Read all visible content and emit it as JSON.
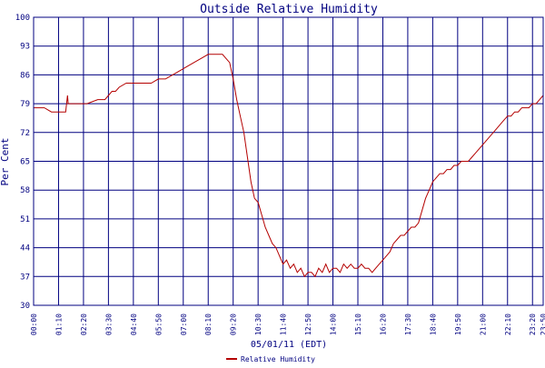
{
  "chart_data": {
    "type": "line",
    "title": "Outside Relative Humidity",
    "xlabel": "05/01/11 (EDT)",
    "ylabel": "Per Cent",
    "ylim": [
      30,
      100
    ],
    "yticks": [
      30,
      37,
      44,
      51,
      58,
      65,
      72,
      79,
      86,
      93,
      100
    ],
    "xlim": [
      "00:00",
      "23:50"
    ],
    "xticks": [
      "00:00",
      "01:10",
      "02:20",
      "03:30",
      "04:40",
      "05:50",
      "07:00",
      "08:10",
      "09:20",
      "10:30",
      "11:40",
      "12:50",
      "14:00",
      "15:10",
      "16:20",
      "17:30",
      "18:40",
      "19:50",
      "21:00",
      "22:10",
      "23:20",
      "23:50"
    ],
    "grid": true,
    "legend_position": "bottom-center",
    "colors": {
      "series": "#b40000",
      "grid": "#000080",
      "title": "#000080"
    },
    "series": [
      {
        "name": "Relative Humidity",
        "points": [
          [
            "00:00",
            78
          ],
          [
            "00:10",
            78
          ],
          [
            "00:30",
            78
          ],
          [
            "00:50",
            77
          ],
          [
            "01:00",
            77
          ],
          [
            "01:20",
            77
          ],
          [
            "01:30",
            77
          ],
          [
            "01:35",
            81
          ],
          [
            "01:37",
            79
          ],
          [
            "02:00",
            79
          ],
          [
            "02:30",
            79
          ],
          [
            "03:00",
            80
          ],
          [
            "03:20",
            80
          ],
          [
            "03:40",
            82
          ],
          [
            "03:50",
            82
          ],
          [
            "04:00",
            83
          ],
          [
            "04:20",
            84
          ],
          [
            "04:40",
            84
          ],
          [
            "05:10",
            84
          ],
          [
            "05:30",
            84
          ],
          [
            "05:50",
            85
          ],
          [
            "06:10",
            85
          ],
          [
            "06:30",
            86
          ],
          [
            "06:50",
            87
          ],
          [
            "07:10",
            88
          ],
          [
            "07:30",
            89
          ],
          [
            "07:50",
            90
          ],
          [
            "08:10",
            91
          ],
          [
            "08:30",
            91
          ],
          [
            "08:50",
            91
          ],
          [
            "09:00",
            90
          ],
          [
            "09:10",
            89
          ],
          [
            "09:20",
            85
          ],
          [
            "09:30",
            80
          ],
          [
            "09:40",
            76
          ],
          [
            "09:50",
            72
          ],
          [
            "10:00",
            66
          ],
          [
            "10:10",
            60
          ],
          [
            "10:20",
            56
          ],
          [
            "10:30",
            55
          ],
          [
            "10:40",
            52
          ],
          [
            "10:50",
            49
          ],
          [
            "11:00",
            47
          ],
          [
            "11:10",
            45
          ],
          [
            "11:20",
            44
          ],
          [
            "11:30",
            42
          ],
          [
            "11:40",
            40
          ],
          [
            "11:50",
            41
          ],
          [
            "12:00",
            39
          ],
          [
            "12:10",
            40
          ],
          [
            "12:20",
            38
          ],
          [
            "12:30",
            39
          ],
          [
            "12:40",
            37
          ],
          [
            "12:50",
            38
          ],
          [
            "13:00",
            38
          ],
          [
            "13:10",
            37
          ],
          [
            "13:20",
            39
          ],
          [
            "13:30",
            38
          ],
          [
            "13:40",
            40
          ],
          [
            "13:50",
            38
          ],
          [
            "14:00",
            39
          ],
          [
            "14:10",
            39
          ],
          [
            "14:20",
            38
          ],
          [
            "14:30",
            40
          ],
          [
            "14:40",
            39
          ],
          [
            "14:50",
            40
          ],
          [
            "15:00",
            39
          ],
          [
            "15:10",
            39
          ],
          [
            "15:20",
            40
          ],
          [
            "15:30",
            39
          ],
          [
            "15:40",
            39
          ],
          [
            "15:50",
            38
          ],
          [
            "16:00",
            39
          ],
          [
            "16:10",
            40
          ],
          [
            "16:20",
            41
          ],
          [
            "16:30",
            42
          ],
          [
            "16:40",
            43
          ],
          [
            "16:50",
            45
          ],
          [
            "17:00",
            46
          ],
          [
            "17:10",
            47
          ],
          [
            "17:20",
            47
          ],
          [
            "17:30",
            48
          ],
          [
            "17:40",
            49
          ],
          [
            "17:50",
            49
          ],
          [
            "18:00",
            50
          ],
          [
            "18:10",
            53
          ],
          [
            "18:20",
            56
          ],
          [
            "18:30",
            58
          ],
          [
            "18:40",
            60
          ],
          [
            "18:50",
            61
          ],
          [
            "19:00",
            62
          ],
          [
            "19:10",
            62
          ],
          [
            "19:20",
            63
          ],
          [
            "19:30",
            63
          ],
          [
            "19:40",
            64
          ],
          [
            "19:50",
            64
          ],
          [
            "20:00",
            65
          ],
          [
            "20:10",
            65
          ],
          [
            "20:20",
            65
          ],
          [
            "20:30",
            66
          ],
          [
            "20:40",
            67
          ],
          [
            "20:50",
            68
          ],
          [
            "21:00",
            69
          ],
          [
            "21:10",
            70
          ],
          [
            "21:20",
            71
          ],
          [
            "21:30",
            72
          ],
          [
            "21:40",
            73
          ],
          [
            "21:50",
            74
          ],
          [
            "22:00",
            75
          ],
          [
            "22:10",
            76
          ],
          [
            "22:20",
            76
          ],
          [
            "22:30",
            77
          ],
          [
            "22:40",
            77
          ],
          [
            "22:50",
            78
          ],
          [
            "23:00",
            78
          ],
          [
            "23:10",
            78
          ],
          [
            "23:20",
            79
          ],
          [
            "23:30",
            79
          ],
          [
            "23:40",
            80
          ],
          [
            "23:50",
            81
          ]
        ]
      }
    ]
  }
}
